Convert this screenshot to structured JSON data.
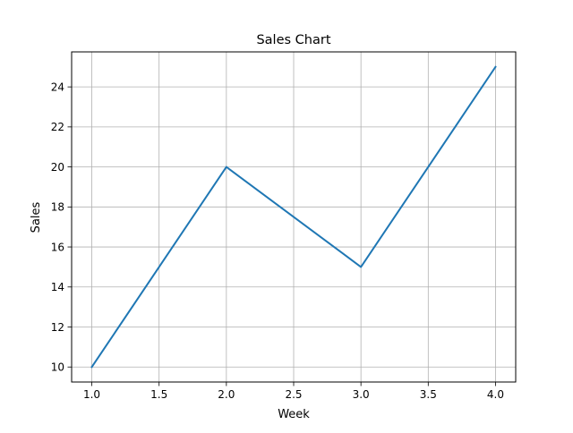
{
  "chart_data": {
    "type": "line",
    "title": "Sales Chart",
    "xlabel": "Week",
    "ylabel": "Sales",
    "xlim": [
      0.85,
      4.15
    ],
    "ylim": [
      9.25,
      25.75
    ],
    "xticks": [
      1.0,
      1.5,
      2.0,
      2.5,
      3.0,
      3.5,
      4.0
    ],
    "xtick_labels": [
      "1.0",
      "1.5",
      "2.0",
      "2.5",
      "3.0",
      "3.5",
      "4.0"
    ],
    "yticks": [
      10,
      12,
      14,
      16,
      18,
      20,
      22,
      24
    ],
    "ytick_labels": [
      "10",
      "12",
      "14",
      "16",
      "18",
      "20",
      "22",
      "24"
    ],
    "grid": true,
    "series": [
      {
        "x": [
          1,
          2,
          3,
          4
        ],
        "y": [
          10,
          20,
          15,
          25
        ],
        "color": "#1f77b4"
      }
    ]
  }
}
